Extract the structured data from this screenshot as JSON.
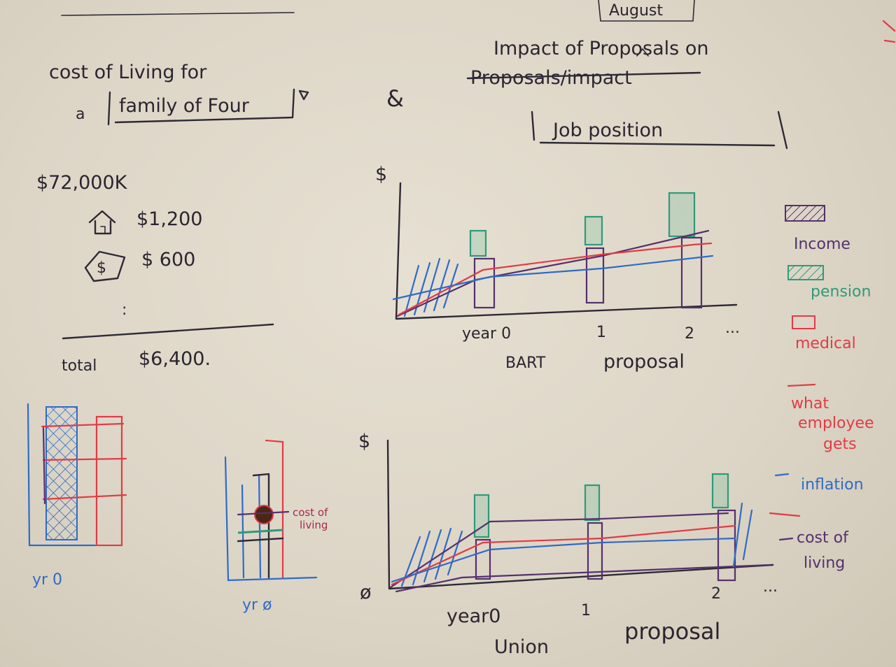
{
  "header": {
    "month_label": "August",
    "title_left_line1": "cost of Living for",
    "title_left_a": "a",
    "title_left_box": "family of Four",
    "ampersand": "&",
    "title_right_line1": "Impact of Proposals on",
    "title_right_struck": "Proposals/impact",
    "job_box": "Job position"
  },
  "budget": {
    "income": "$72,000K",
    "rent": "$1,200",
    "money": "$ 600",
    "ellipsis": ":",
    "total_label": "total",
    "total_value": "$6,400."
  },
  "chart_top": {
    "y_symbol": "$",
    "ticks": [
      "year 0",
      "1",
      "2",
      "..."
    ],
    "caption_a": "BART",
    "caption_b": "proposal"
  },
  "chart_bottom": {
    "y_symbol": "$",
    "origin": "ø",
    "ticks": [
      "year0",
      "1",
      "2",
      "..."
    ],
    "caption_a": "Union",
    "caption_b": "proposal"
  },
  "small_charts": {
    "left_label": "yr 0",
    "right_label": "yr ø",
    "callout_line1": "cost of",
    "callout_line2": "living"
  },
  "legend": {
    "income": "Income",
    "pension": "pension",
    "medical": "medical",
    "employee_line1": "what",
    "employee_line2": "employee",
    "employee_line3": "gets",
    "inflation": "inflation",
    "col_line1": "cost of",
    "col_line2": "living"
  },
  "colors": {
    "ink": "#2e2a36",
    "blue": "#2f6bc6",
    "red": "#e23b45",
    "green": "#2f9a7a",
    "purple": "#55306e",
    "paper": "#e2dccd"
  }
}
